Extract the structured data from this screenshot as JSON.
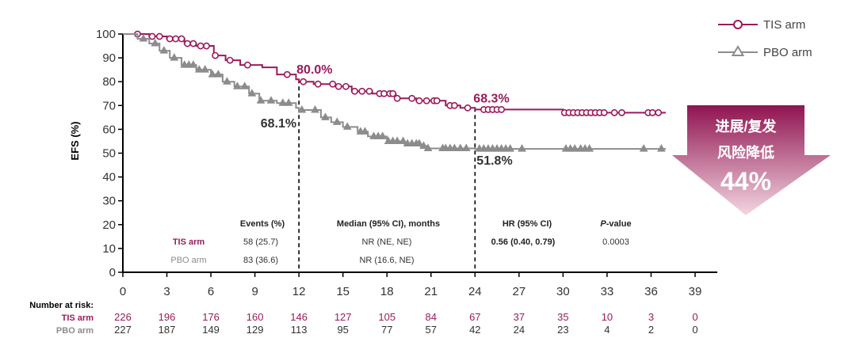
{
  "colors": {
    "tis": "#9b1b5a",
    "pbo": "#8c8c8c",
    "axis": "#000000",
    "text": "#333333",
    "arrow_top": "#8f1450",
    "arrow_bottom": "#f3d6e2"
  },
  "chart_data": {
    "type": "line",
    "subtype": "kaplan-meier",
    "ylabel": "EFS (%)",
    "xlabel": "",
    "xlim": [
      0,
      39
    ],
    "ylim": [
      0,
      100
    ],
    "x_ticks": [
      "0",
      "3",
      "6",
      "9",
      "12",
      "15",
      "18",
      "21",
      "24",
      "27",
      "30",
      "33",
      "36",
      "39"
    ],
    "y_ticks": [
      "0",
      "10",
      "20",
      "30",
      "40",
      "50",
      "60",
      "70",
      "80",
      "90",
      "100"
    ],
    "grid": false,
    "legend_position": "top-right",
    "series": [
      {
        "name": "TIS arm",
        "marker": "circle",
        "color": "#9b1b5a",
        "steps": [
          [
            0,
            100
          ],
          [
            1.8,
            99
          ],
          [
            3,
            98
          ],
          [
            4.2,
            96
          ],
          [
            5,
            95
          ],
          [
            6.2,
            91
          ],
          [
            7,
            89
          ],
          [
            8,
            87
          ],
          [
            9.5,
            86
          ],
          [
            10.5,
            83
          ],
          [
            11.8,
            81
          ],
          [
            12,
            80.0
          ],
          [
            13,
            79
          ],
          [
            14.5,
            78
          ],
          [
            15.6,
            76
          ],
          [
            17,
            75
          ],
          [
            18.6,
            73
          ],
          [
            20,
            72
          ],
          [
            22,
            70
          ],
          [
            23,
            69
          ],
          [
            24,
            68.3
          ],
          [
            30,
            67
          ],
          [
            37,
            67
          ]
        ],
        "censor_x": [
          1,
          2,
          2.5,
          3.2,
          3.6,
          4,
          4.4,
          4.8,
          5.3,
          5.7,
          6.3,
          7.3,
          8.5,
          11.2,
          12.3,
          13.3,
          14.3,
          14.7,
          15.2,
          15.8,
          16.3,
          16.8,
          17.5,
          17.8,
          18.2,
          18.4,
          18.7,
          19.7,
          20.2,
          20.7,
          21.2,
          21.4,
          22.3,
          22.6,
          23.5,
          24.6,
          24.9,
          25.2,
          25.5,
          25.8,
          30.1,
          30.4,
          30.7,
          31,
          31.3,
          31.6,
          31.9,
          32.2,
          32.5,
          32.8,
          33.5,
          34,
          35.8,
          36.1,
          36.5
        ],
        "annotations": [
          {
            "x": 12,
            "y": 80.0,
            "label": "80.0%"
          },
          {
            "x": 24,
            "y": 68.3,
            "label": "68.3%"
          }
        ]
      },
      {
        "name": "PBO arm",
        "marker": "triangle",
        "color": "#8c8c8c",
        "steps": [
          [
            0,
            100
          ],
          [
            1,
            98
          ],
          [
            1.8,
            96
          ],
          [
            2.5,
            93
          ],
          [
            3.2,
            90
          ],
          [
            4,
            87
          ],
          [
            5,
            85
          ],
          [
            6,
            83
          ],
          [
            6.8,
            80
          ],
          [
            7.6,
            78
          ],
          [
            8.6,
            75
          ],
          [
            9.3,
            72
          ],
          [
            10.5,
            71
          ],
          [
            11.8,
            69
          ],
          [
            12,
            68.1
          ],
          [
            13.5,
            65
          ],
          [
            14.2,
            63
          ],
          [
            15,
            61
          ],
          [
            16,
            59
          ],
          [
            16.7,
            57
          ],
          [
            18,
            55
          ],
          [
            19.2,
            54
          ],
          [
            20.3,
            53
          ],
          [
            20.8,
            52
          ],
          [
            24,
            51.8
          ],
          [
            37,
            51.8
          ]
        ],
        "censor_x": [
          1.4,
          2.2,
          2.8,
          3.5,
          4.2,
          4.5,
          4.8,
          5.2,
          5.6,
          6.1,
          6.5,
          7.1,
          7.8,
          8.3,
          8.8,
          9.4,
          10.1,
          10.9,
          11.3,
          12.2,
          13.1,
          13.8,
          14.6,
          15.3,
          16.2,
          16.5,
          17.1,
          17.4,
          17.7,
          18.1,
          18.4,
          18.7,
          19.1,
          19.4,
          19.7,
          20,
          20.2,
          20.5,
          20.8,
          21.8,
          22,
          22.3,
          22.6,
          23,
          23.4,
          24.3,
          24.6,
          24.9,
          25.2,
          25.5,
          25.8,
          26.1,
          26.4,
          27.2,
          30.2,
          30.5,
          30.8,
          31.2,
          31.5,
          31.8,
          35.5,
          36.7
        ],
        "annotations": [
          {
            "x": 12,
            "y": 68.1,
            "label": "68.1%"
          },
          {
            "x": 24,
            "y": 51.8,
            "label": "51.8%"
          }
        ]
      }
    ],
    "risk_table": {
      "header": "Number at risk:",
      "rows": [
        {
          "label": "TIS arm",
          "values": [
            "226",
            "196",
            "176",
            "160",
            "146",
            "127",
            "105",
            "84",
            "67",
            "37",
            "35",
            "10",
            "3",
            "0"
          ]
        },
        {
          "label": "PBO arm",
          "values": [
            "227",
            "187",
            "149",
            "129",
            "113",
            "95",
            "77",
            "57",
            "42",
            "24",
            "23",
            "4",
            "2",
            "0"
          ]
        }
      ]
    },
    "stats_table": {
      "headers": [
        "Events (%)",
        "Median (95% CI), months",
        "HR (95% CI)",
        "P-value"
      ],
      "rows": [
        {
          "label": "TIS arm",
          "events": "58 (25.7)",
          "median": "NR (NE, NE)",
          "hr": "0.56 (0.40, 0.79)",
          "p": "0.0003"
        },
        {
          "label": "PBO arm",
          "events": "83 (36.6)",
          "median": "NR (16.6, NE)",
          "hr": "",
          "p": ""
        }
      ]
    },
    "callout": {
      "line1": "进展/复发",
      "line2": "风险降低",
      "value": "44%"
    }
  }
}
